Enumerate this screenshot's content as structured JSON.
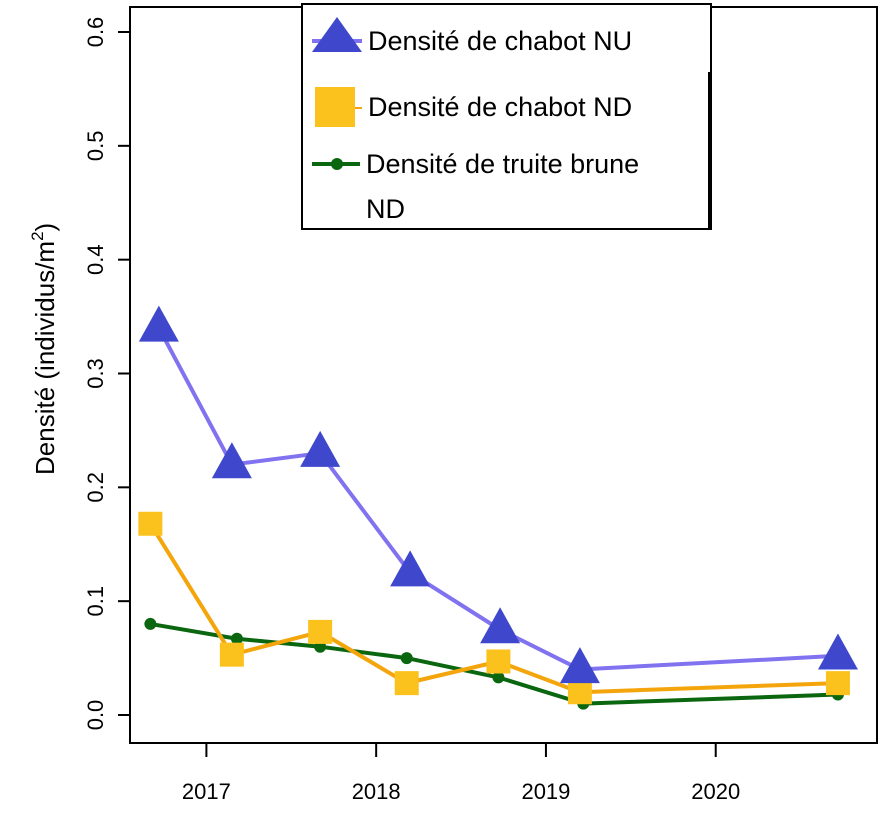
{
  "chart_data": {
    "type": "line",
    "ylabel": "Densité (individus/m",
    "ylabel_superscript": "2",
    "ylabel_close": ")",
    "ylim": [
      0,
      0.6
    ],
    "y_ticks": [
      "0.0",
      "0.1",
      "0.2",
      "0.3",
      "0.4",
      "0.5",
      "0.6"
    ],
    "xlim": [
      2016.55,
      2020.95
    ],
    "x_ticks": [
      "2017",
      "2018",
      "2019",
      "2020"
    ],
    "grid": false,
    "legend_position": "top-right",
    "series": [
      {
        "name": "Densité de chabot NU",
        "color": "#8172f0",
        "marker_color": "#3f48cc",
        "marker": "triangle",
        "x": [
          2016.72,
          2017.15,
          2017.67,
          2018.2,
          2018.73,
          2019.2,
          2020.72
        ],
        "y": [
          0.34,
          0.22,
          0.23,
          0.125,
          0.075,
          0.04,
          0.052
        ]
      },
      {
        "name": "Densité de chabot ND",
        "color": "#f4a50c",
        "marker_color": "#fbc21d",
        "marker": "square",
        "x": [
          2016.67,
          2017.15,
          2017.67,
          2018.18,
          2018.72,
          2019.2,
          2020.72
        ],
        "y": [
          0.168,
          0.053,
          0.073,
          0.028,
          0.047,
          0.02,
          0.028
        ]
      },
      {
        "name": "Densité de truite brune",
        "name_line2": "ND",
        "color": "#0b6610",
        "marker_color": "#0b6610",
        "marker": "circle",
        "x": [
          2016.67,
          2017.18,
          2017.67,
          2018.18,
          2018.72,
          2019.22,
          2020.72
        ],
        "y": [
          0.08,
          0.067,
          0.06,
          0.05,
          0.033,
          0.01,
          0.018
        ]
      }
    ]
  }
}
